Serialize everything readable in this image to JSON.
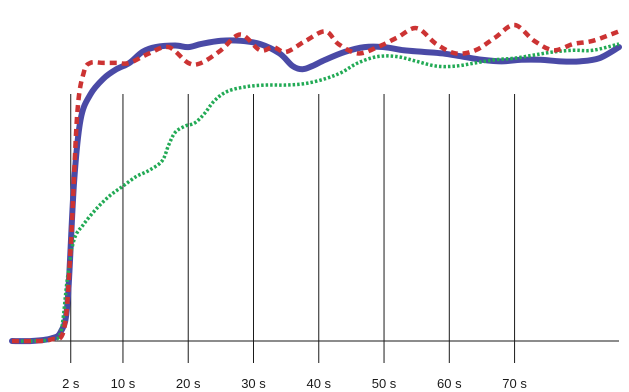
{
  "chart_data": {
    "type": "line",
    "title": "",
    "xlabel": "",
    "ylabel": "",
    "grid": "vertical lines at labeled ticks",
    "legend": "none",
    "x_ticks": [
      {
        "x": 2,
        "label": "2 s"
      },
      {
        "x": 10,
        "label": "10 s"
      },
      {
        "x": 20,
        "label": "20 s"
      },
      {
        "x": 30,
        "label": "30 s"
      },
      {
        "x": 40,
        "label": "40 s"
      },
      {
        "x": 50,
        "label": "50 s"
      },
      {
        "x": 60,
        "label": "60 s"
      },
      {
        "x": 70,
        "label": "70 s"
      }
    ],
    "xlim": [
      -7,
      86
    ],
    "ylim": [
      0,
      100
    ],
    "series": [
      {
        "style": "solid",
        "color": "#4a4aa6",
        "x": [
          -7,
          -4,
          -1,
          0.5,
          1.5,
          2.5,
          3.5,
          5,
          7,
          9,
          11,
          13,
          15,
          18,
          20,
          22,
          25,
          28,
          31,
          34,
          36,
          37.5,
          39,
          41,
          44,
          47,
          50,
          53,
          56,
          59,
          62,
          65,
          68,
          71,
          74,
          77,
          80,
          83,
          86
        ],
        "y": [
          0,
          0,
          0.8,
          3,
          12,
          50,
          70,
          78,
          83,
          86,
          88,
          91.5,
          93,
          93.5,
          93,
          94,
          95,
          95,
          94,
          91,
          87,
          86,
          87,
          89,
          91.5,
          93,
          93,
          92,
          91.5,
          91,
          90,
          89,
          88.5,
          89,
          89,
          88.5,
          88.5,
          89.5,
          93
        ]
      },
      {
        "style": "dashed",
        "color": "#cc3333",
        "x": [
          -7,
          -4,
          -1,
          1,
          2,
          3,
          4,
          5,
          7,
          9,
          11,
          14,
          17,
          20,
          22,
          25,
          28,
          31,
          33,
          35,
          38,
          41,
          43,
          46,
          49,
          52,
          55,
          58,
          61,
          64,
          67,
          70,
          73,
          76,
          79,
          82,
          86
        ],
        "y": [
          0,
          0,
          0.5,
          4,
          30,
          72,
          85,
          88,
          88,
          88,
          88,
          91,
          93,
          88,
          88,
          92,
          97,
          92,
          93,
          91.5,
          95,
          98,
          94,
          91,
          93,
          96,
          99,
          94,
          91,
          92,
          96,
          100,
          95,
          92,
          94,
          95,
          98
        ]
      },
      {
        "style": "dotted",
        "color": "#22aa55",
        "x": [
          -7,
          -4,
          -1,
          0.5,
          1.5,
          2.5,
          4,
          6,
          8,
          10,
          12,
          14,
          16,
          17,
          18,
          19.5,
          21,
          22.5,
          24,
          26,
          29,
          32,
          35,
          38,
          41,
          43.5,
          46,
          49,
          52,
          55,
          58,
          61,
          64,
          67,
          70,
          73,
          76,
          79,
          82,
          86
        ],
        "y": [
          0,
          0,
          0.5,
          3,
          20,
          32,
          37,
          42,
          46,
          49,
          52,
          54,
          57,
          62,
          66,
          68,
          69,
          72,
          76,
          79,
          80.5,
          81,
          81,
          81.5,
          83,
          85,
          88,
          90,
          90,
          88.5,
          87,
          87,
          88,
          89,
          89.5,
          90.5,
          91.5,
          92,
          92,
          94
        ]
      }
    ]
  }
}
